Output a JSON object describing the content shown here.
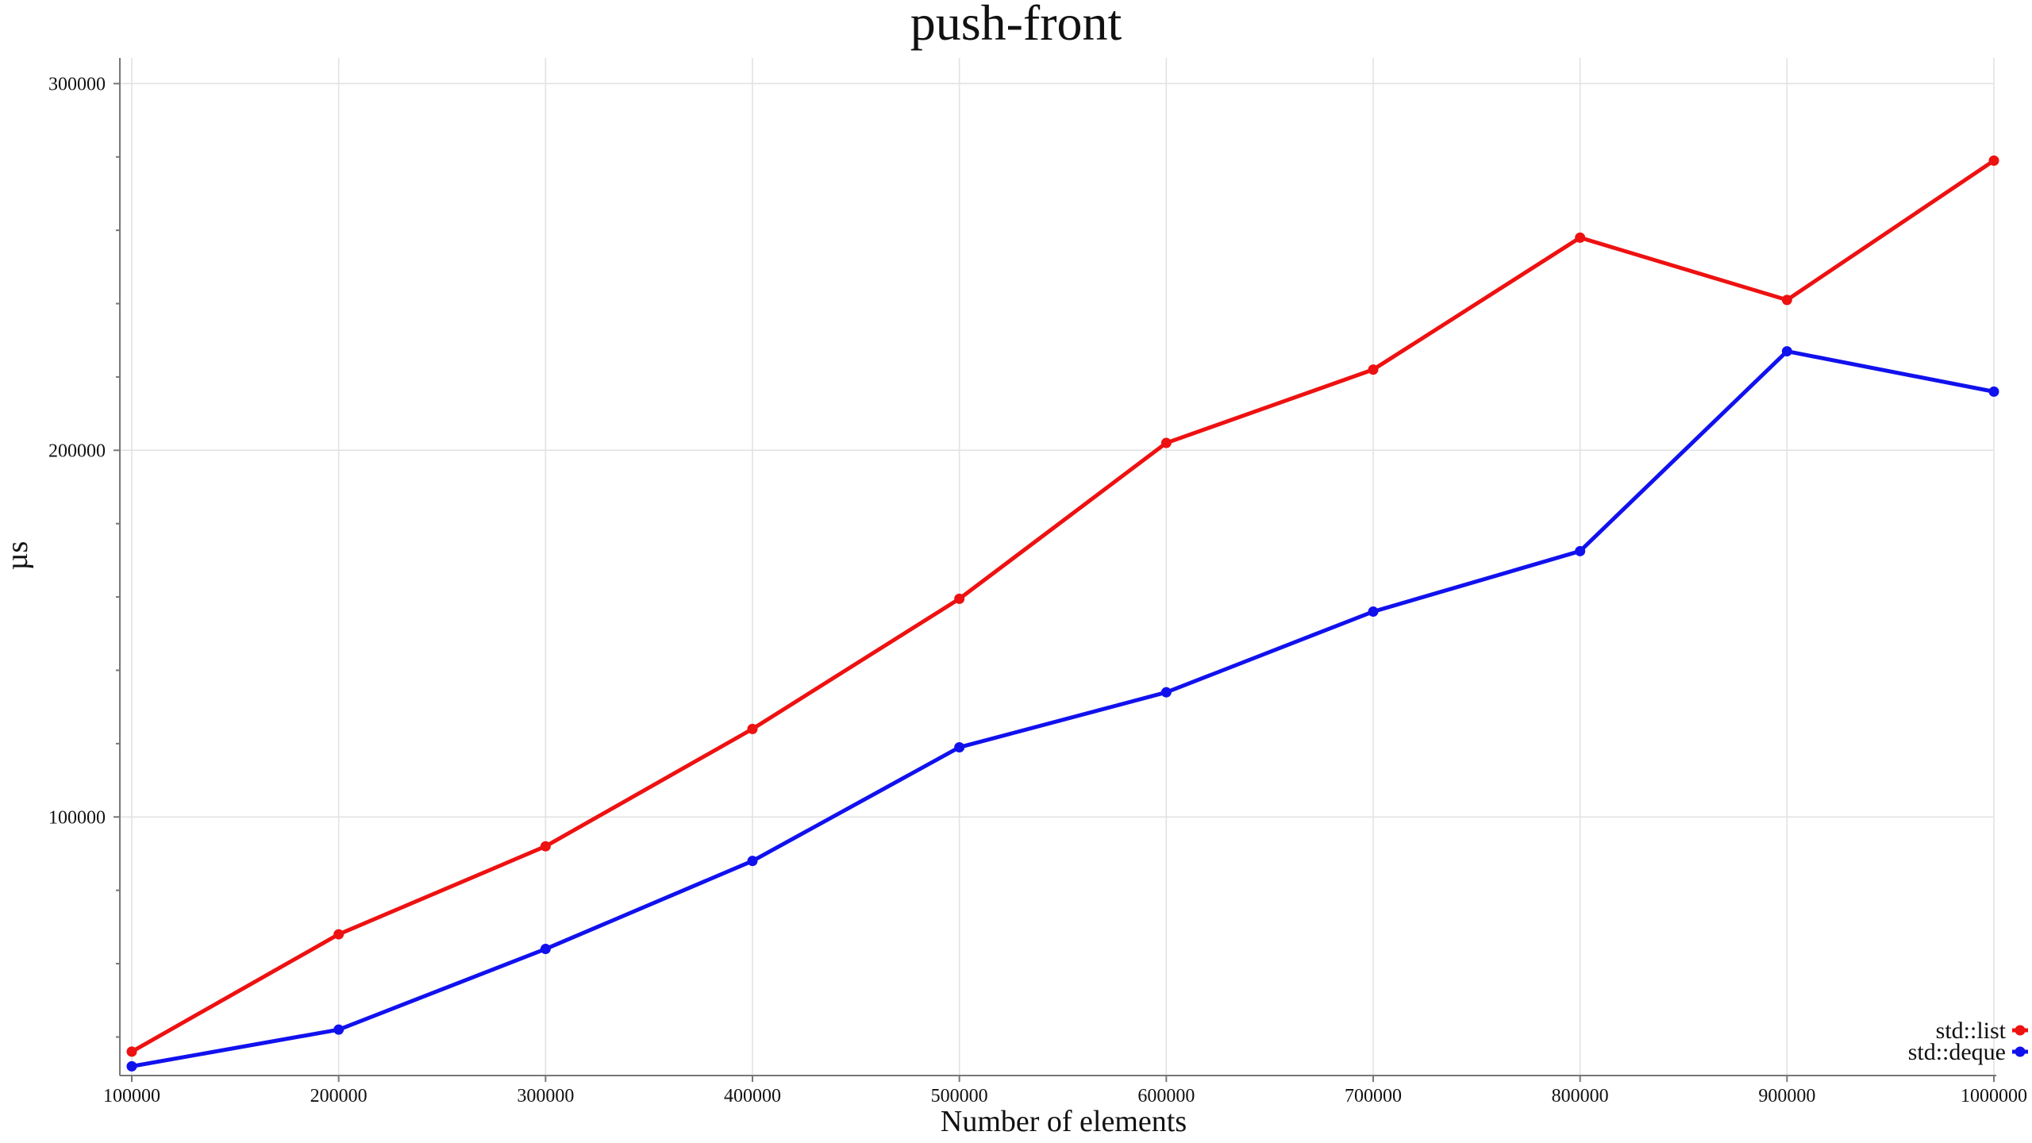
{
  "chart_data": {
    "type": "line",
    "title": "push-front",
    "xlabel": "Number of elements",
    "ylabel": "µs",
    "x": [
      100000,
      200000,
      300000,
      400000,
      500000,
      600000,
      700000,
      800000,
      900000,
      1000000
    ],
    "x_ticks": [
      "100000",
      "200000",
      "300000",
      "400000",
      "500000",
      "600000",
      "700000",
      "800000",
      "900000",
      "1000000"
    ],
    "y_ticks": [
      "100000",
      "200000",
      "300000"
    ],
    "xlim": [
      100000,
      1000000
    ],
    "ylim": [
      31000,
      307000
    ],
    "grid": true,
    "legend_position": "bottom-right",
    "series": [
      {
        "name": "std::list",
        "color": "#ee1111",
        "values": [
          36000,
          68000,
          92000,
          124000,
          159500,
          202000,
          222000,
          258000,
          241000,
          279000
        ]
      },
      {
        "name": "std::deque",
        "color": "#1111ee",
        "values": [
          32000,
          42000,
          64000,
          88000,
          119000,
          134000,
          156000,
          172500,
          227000,
          216000
        ]
      }
    ]
  }
}
